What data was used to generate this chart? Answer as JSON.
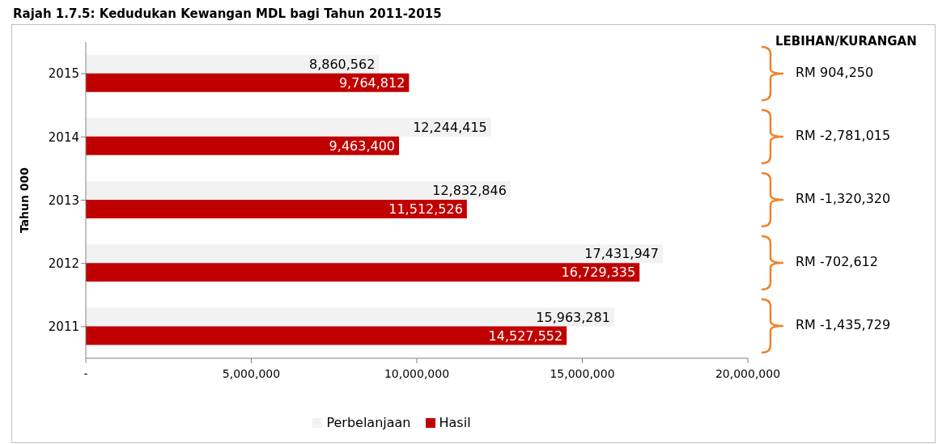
{
  "chart_data": {
    "type": "bar",
    "orientation": "horizontal",
    "title": "Rajah 1.7.5: Kedudukan Kewangan MDL bagi Tahun 2011-2015",
    "ylabel": "Tahun 000",
    "categories": [
      "2015",
      "2014",
      "2013",
      "2012",
      "2011"
    ],
    "series": [
      {
        "name": "Perbelanjaan",
        "color": "#f2f2f2",
        "values": [
          8860562,
          12244415,
          12832846,
          17431947,
          15963281
        ],
        "value_labels": [
          "8,860,562",
          "12,244,415",
          "12,832,846",
          "17,431,947",
          "15,963,281"
        ]
      },
      {
        "name": "Hasil",
        "color": "#c00000",
        "values": [
          9764812,
          9463400,
          11512526,
          16729335,
          14527552
        ],
        "value_labels": [
          "9,764,812",
          "9,463,400",
          "11,512,526",
          "16,729,335",
          "14,527,552"
        ]
      }
    ],
    "xlim": [
      0,
      20000000
    ],
    "xticks": [
      {
        "value": 0,
        "label": "-"
      },
      {
        "value": 5000000,
        "label": "5,000,000"
      },
      {
        "value": 10000000,
        "label": "10,000,000"
      },
      {
        "value": 15000000,
        "label": "15,000,000"
      },
      {
        "value": 20000000,
        "label": "20,000,000"
      }
    ],
    "grid": false,
    "legend": "bottom",
    "annotations": [
      "LEBIHAN/KURANGAN",
      "RM 904,250",
      "RM -2,781,015",
      "RM -1,320,320",
      "RM -702,612",
      "RM -1,435,729"
    ]
  }
}
